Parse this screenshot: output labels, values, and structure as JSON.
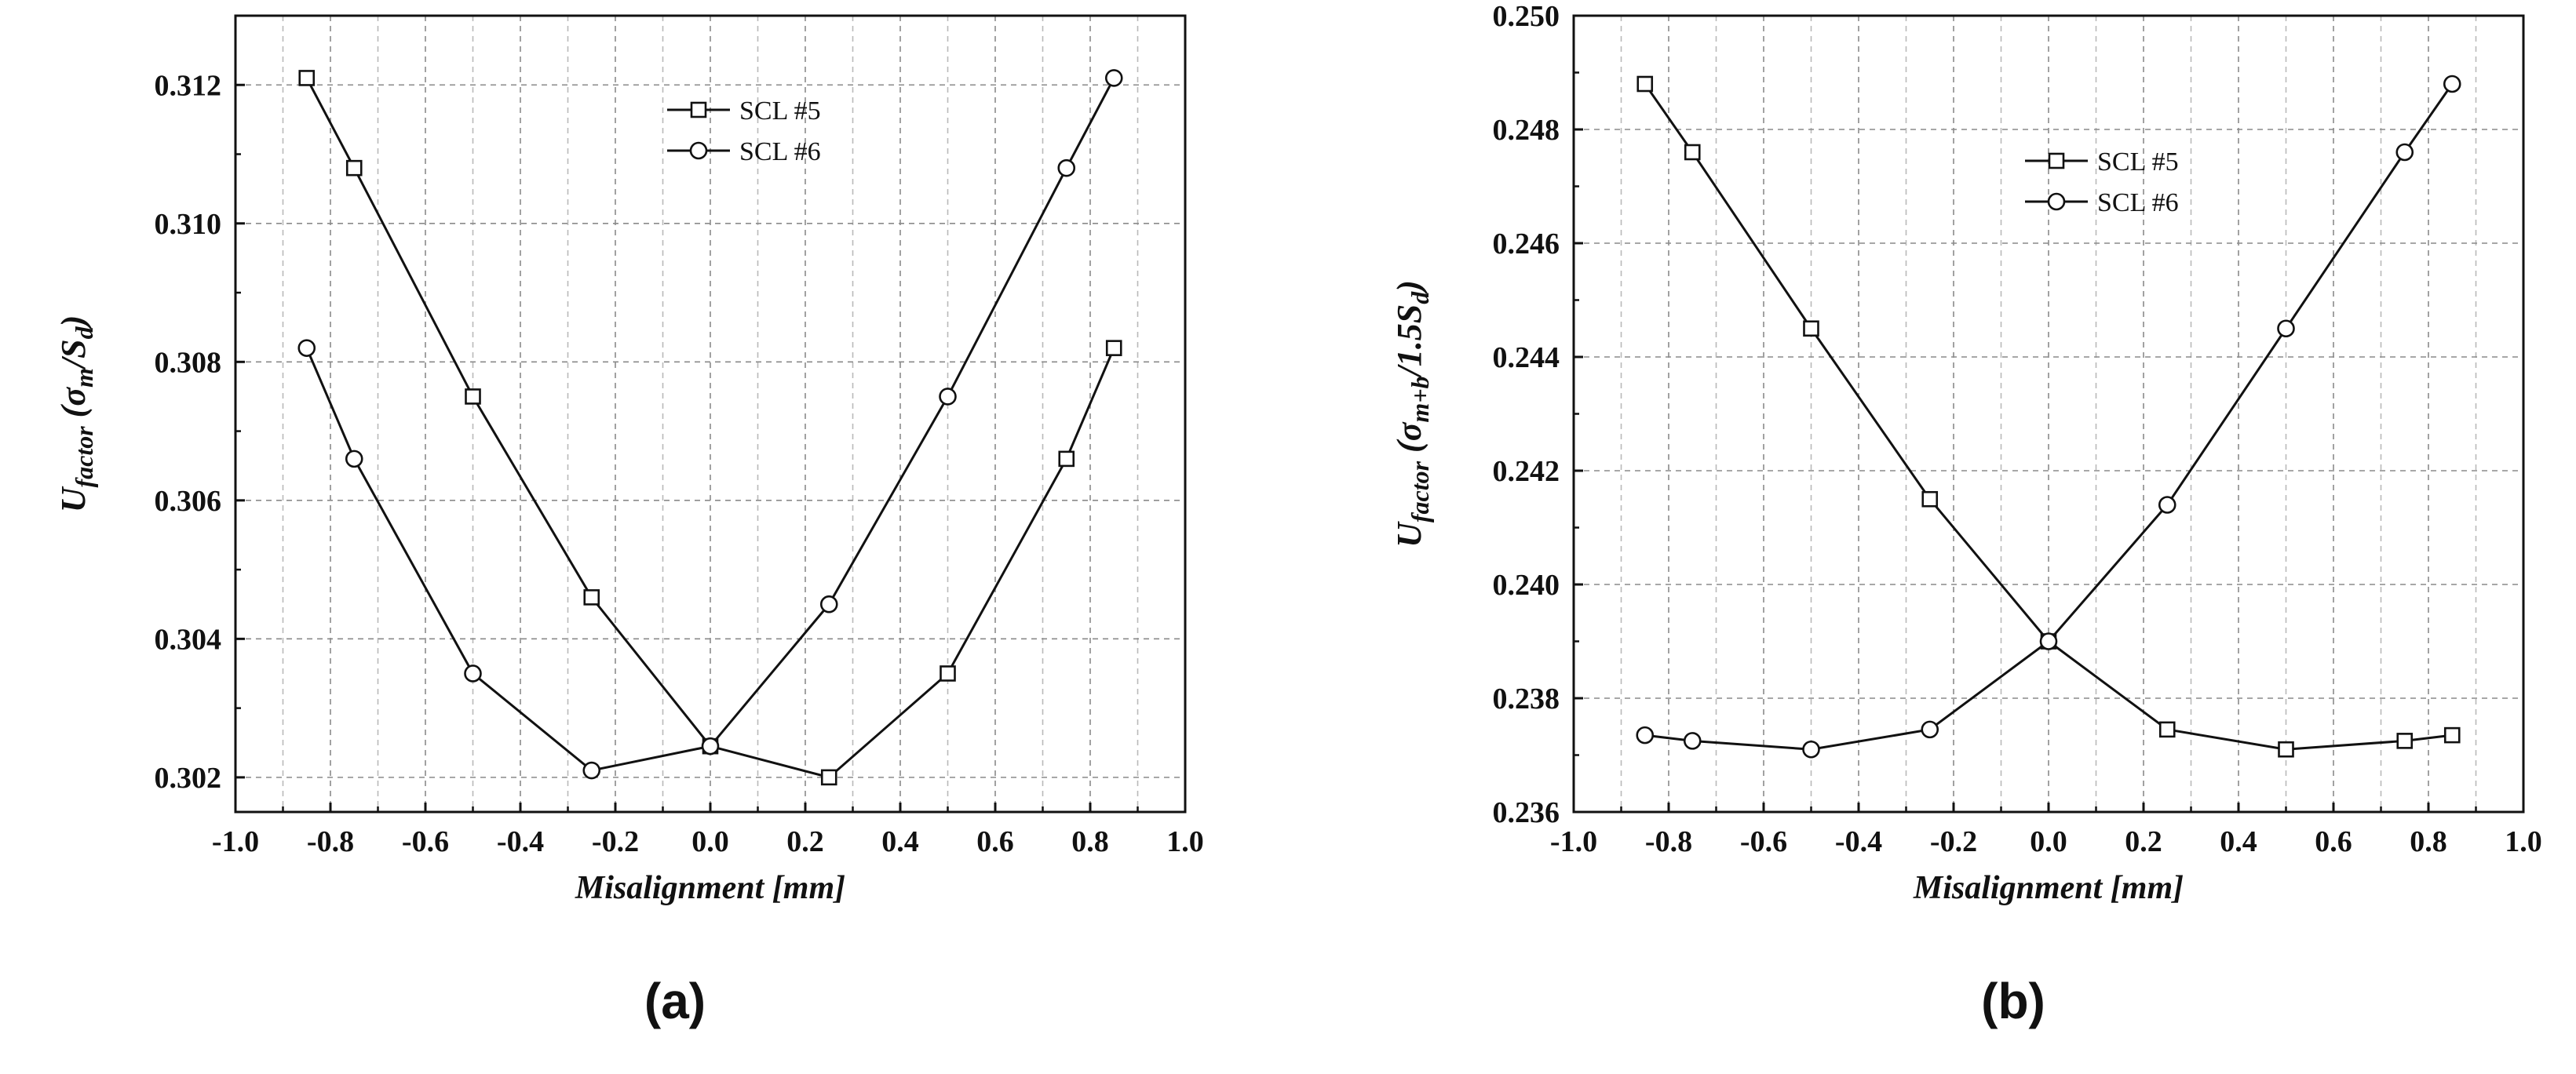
{
  "chart_data": [
    {
      "type": "line",
      "panel_label": "(a)",
      "xlabel": "Misalignment [mm]",
      "ylabel": {
        "main": "U",
        "sub": "factor",
        "rest": " (σ",
        "sub2": "m",
        "rest2": "/S",
        "sub3": "d",
        "close": ")"
      },
      "xlim": [
        -1.0,
        1.0
      ],
      "ylim": [
        0.3015,
        0.313
      ],
      "xticks": [
        "-1.0",
        "-0.8",
        "-0.6",
        "-0.4",
        "-0.2",
        "0.0",
        "0.2",
        "0.4",
        "0.6",
        "0.8",
        "1.0"
      ],
      "xtick_values": [
        -1.0,
        -0.8,
        -0.6,
        -0.4,
        -0.2,
        0.0,
        0.2,
        0.4,
        0.6,
        0.8,
        1.0
      ],
      "yticks": [
        "0.302",
        "0.304",
        "0.306",
        "0.308",
        "0.310",
        "0.312"
      ],
      "ytick_values": [
        0.302,
        0.304,
        0.306,
        0.308,
        0.31,
        0.312
      ],
      "x": [
        -0.85,
        -0.75,
        -0.5,
        -0.25,
        0.0,
        0.25,
        0.5,
        0.75,
        0.85
      ],
      "series": [
        {
          "name": "SCL #5",
          "marker": "square",
          "values": [
            0.3121,
            0.3108,
            0.3075,
            0.3046,
            0.30245,
            0.302,
            0.3035,
            0.3066,
            0.3082
          ]
        },
        {
          "name": "SCL #6",
          "marker": "circle",
          "values": [
            0.3082,
            0.3066,
            0.3035,
            0.3021,
            0.30245,
            0.3045,
            0.3075,
            0.3108,
            0.3121
          ]
        }
      ],
      "legend": [
        "SCL #5",
        "SCL #6"
      ],
      "legend_position": "top-center",
      "grid": true
    },
    {
      "type": "line",
      "panel_label": "(b)",
      "xlabel": "Misalignment [mm]",
      "ylabel": {
        "main": "U",
        "sub": "factor",
        "rest": " (σ",
        "sub2": "m+b",
        "rest2": "/1.5S",
        "sub3": "d",
        "close": ")"
      },
      "xlim": [
        -1.0,
        1.0
      ],
      "ylim": [
        0.236,
        0.25
      ],
      "xticks": [
        "-1.0",
        "-0.8",
        "-0.6",
        "-0.4",
        "-0.2",
        "0.0",
        "0.2",
        "0.4",
        "0.6",
        "0.8",
        "1.0"
      ],
      "xtick_values": [
        -1.0,
        -0.8,
        -0.6,
        -0.4,
        -0.2,
        0.0,
        0.2,
        0.4,
        0.6,
        0.8,
        1.0
      ],
      "yticks": [
        "0.236",
        "0.238",
        "0.240",
        "0.242",
        "0.244",
        "0.246",
        "0.248",
        "0.250"
      ],
      "ytick_values": [
        0.236,
        0.238,
        0.24,
        0.242,
        0.244,
        0.246,
        0.248,
        0.25
      ],
      "x": [
        -0.85,
        -0.75,
        -0.5,
        -0.25,
        0.0,
        0.25,
        0.5,
        0.75,
        0.85
      ],
      "series": [
        {
          "name": "SCL #5",
          "marker": "square",
          "values": [
            0.2488,
            0.2476,
            0.2445,
            0.2415,
            0.239,
            0.23745,
            0.2371,
            0.23725,
            0.23735
          ]
        },
        {
          "name": "SCL #6",
          "marker": "circle",
          "values": [
            0.23735,
            0.23725,
            0.2371,
            0.23745,
            0.239,
            0.2414,
            0.2445,
            0.2476,
            0.2488
          ]
        }
      ],
      "legend": [
        "SCL #5",
        "SCL #6"
      ],
      "legend_position": "top-center",
      "grid": true
    }
  ]
}
